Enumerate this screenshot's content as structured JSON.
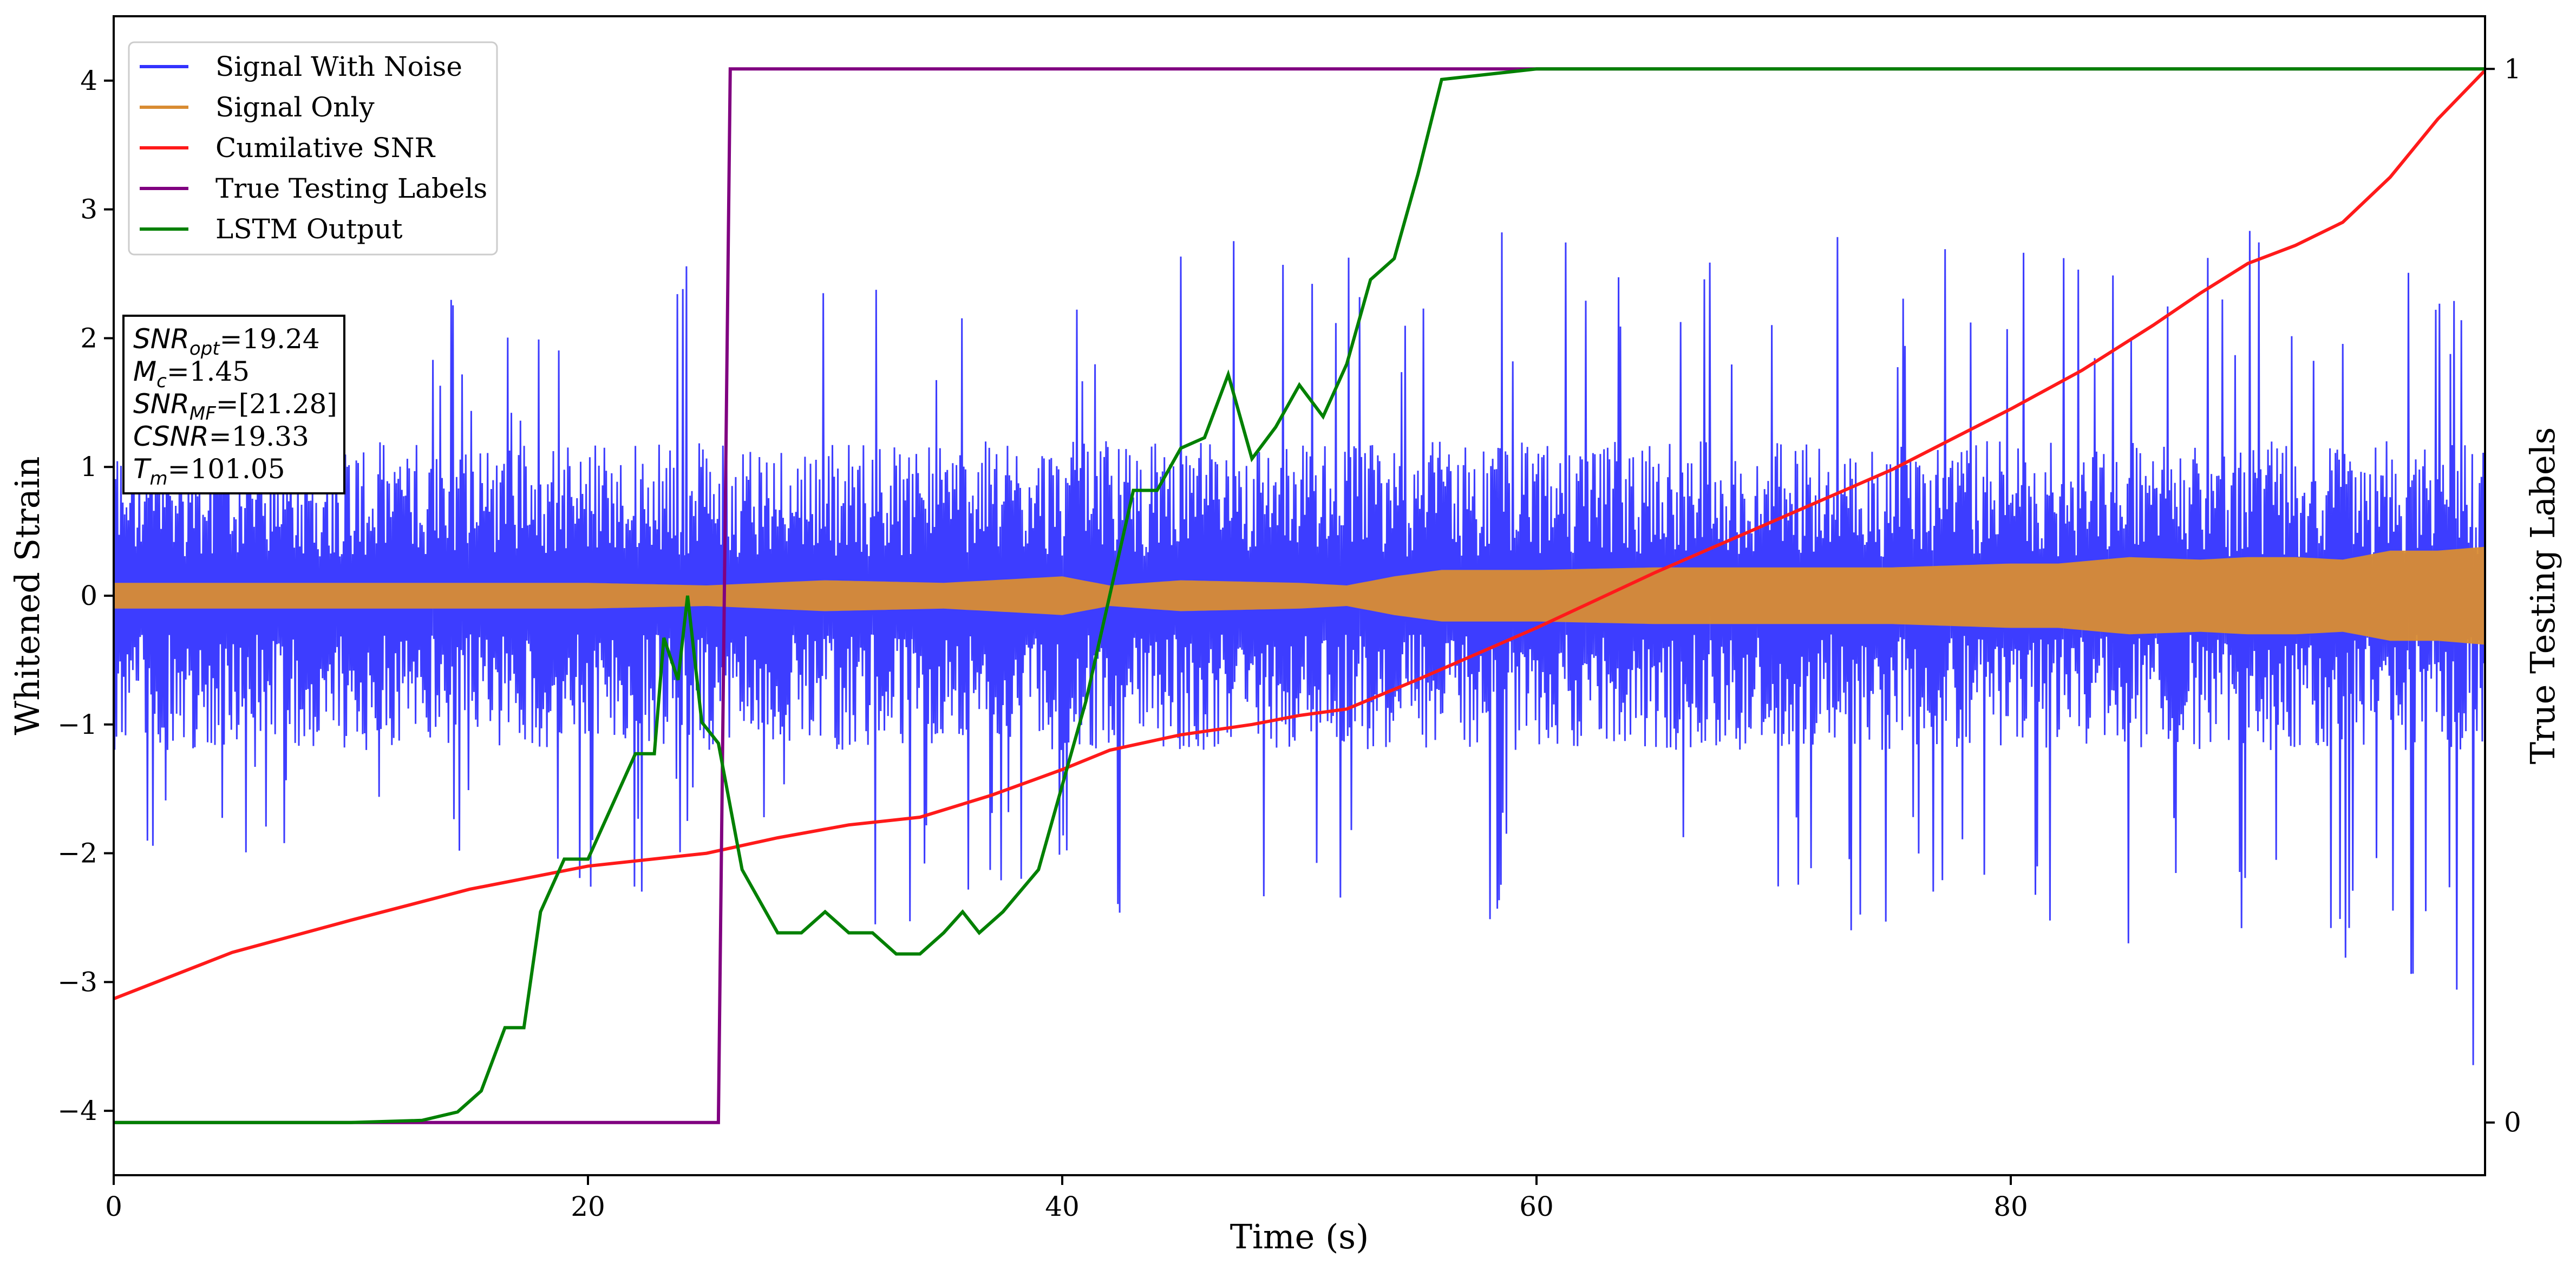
{
  "chart_data": {
    "type": "line",
    "xlabel": "Time (s)",
    "ylabel": "Whitened Strain",
    "y2label": "True Testing Labels",
    "xlim": [
      0,
      100
    ],
    "ylim": [
      -4.5,
      4.5
    ],
    "y2lim": [
      -0.05,
      1.05
    ],
    "xticks": [
      0,
      20,
      40,
      60,
      80
    ],
    "yticks": [
      -4,
      -3,
      -2,
      -1,
      0,
      1,
      2,
      3,
      4
    ],
    "y2ticks": [
      0,
      1
    ],
    "grid": false,
    "legend_position": "top-left",
    "colors": {
      "noise": "#3333ff",
      "signal": "#d98c33",
      "csnr": "#ff1a1a",
      "labels": "#800080",
      "lstm": "#008000"
    },
    "series": [
      {
        "name": "Signal With Noise",
        "axis": "left",
        "style": "band",
        "description_values": "noisy strain, core amplitude about ±0.6 with spikes",
        "x": [
          0,
          2,
          4,
          6,
          8,
          10,
          12,
          14,
          16,
          18,
          20,
          22,
          24,
          26,
          28,
          30,
          32,
          34,
          36,
          38,
          40,
          42,
          44,
          46,
          48,
          50,
          52,
          54,
          56,
          58,
          60,
          62,
          64,
          66,
          68,
          70,
          72,
          74,
          76,
          78,
          80,
          82,
          84,
          86,
          88,
          90,
          92,
          94,
          96,
          98,
          100
        ],
        "upper": [
          2.5,
          2.3,
          2.2,
          2.1,
          2.3,
          2.2,
          2.1,
          2.4,
          2.2,
          2.2,
          2.5,
          2.3,
          2.6,
          2.8,
          2.9,
          2.6,
          3.0,
          2.6,
          2.7,
          2.8,
          2.6,
          3.0,
          2.8,
          3.1,
          2.8,
          2.6,
          3.1,
          2.7,
          2.8,
          3.0,
          3.0,
          2.7,
          2.9,
          3.0,
          2.9,
          2.9,
          3.1,
          2.7,
          3.0,
          3.2,
          3.0,
          3.3,
          3.0,
          2.8,
          3.4,
          3.0,
          2.8,
          3.2,
          2.9,
          2.8,
          3.0
        ],
        "lower": [
          -2.6,
          -2.2,
          -2.0,
          -2.0,
          -2.3,
          -2.1,
          -2.2,
          -2.4,
          -2.3,
          -2.5,
          -2.3,
          -2.8,
          -2.2,
          -2.3,
          -2.4,
          -2.5,
          -2.7,
          -2.5,
          -2.4,
          -2.6,
          -2.5,
          -2.7,
          -2.6,
          -2.5,
          -2.5,
          -2.6,
          -2.6,
          -2.5,
          -2.6,
          -2.6,
          -2.6,
          -2.6,
          -2.8,
          -2.6,
          -2.7,
          -2.6,
          -2.8,
          -2.7,
          -2.6,
          -2.8,
          -2.7,
          -2.6,
          -2.9,
          -2.7,
          -2.8,
          -2.8,
          -3.0,
          -2.8,
          -3.0,
          -2.9,
          -4.0
        ]
      },
      {
        "name": "Signal Only",
        "axis": "left",
        "style": "envelope",
        "x": [
          0,
          5,
          10,
          15,
          20,
          25,
          30,
          35,
          40,
          42,
          45,
          50,
          52,
          54,
          56,
          60,
          65,
          70,
          75,
          80,
          82,
          85,
          88,
          90,
          92,
          94,
          96,
          98,
          100
        ],
        "values": [
          0.1,
          0.1,
          0.1,
          0.1,
          0.1,
          0.08,
          0.12,
          0.1,
          0.15,
          0.08,
          0.12,
          0.1,
          0.08,
          0.15,
          0.2,
          0.2,
          0.22,
          0.22,
          0.22,
          0.25,
          0.25,
          0.3,
          0.28,
          0.3,
          0.3,
          0.28,
          0.35,
          0.35,
          0.38
        ]
      },
      {
        "name": "Cumilative SNR",
        "axis": "left",
        "x": [
          0,
          5,
          10,
          15,
          20,
          25,
          28,
          31,
          34,
          37,
          40,
          42,
          45,
          48,
          50,
          52,
          55,
          60,
          65,
          70,
          75,
          80,
          83,
          86,
          88,
          90,
          92,
          94,
          96,
          98,
          100
        ],
        "values": [
          -3.13,
          -2.77,
          -2.52,
          -2.28,
          -2.1,
          -2.0,
          -1.88,
          -1.78,
          -1.72,
          -1.55,
          -1.35,
          -1.2,
          -1.08,
          -1.0,
          -0.93,
          -0.88,
          -0.65,
          -0.25,
          0.18,
          0.58,
          0.98,
          1.45,
          1.75,
          2.1,
          2.35,
          2.58,
          2.72,
          2.9,
          3.25,
          3.7,
          4.08
        ]
      },
      {
        "name": "True Testing Labels",
        "axis": "right",
        "x": [
          0,
          25.5,
          26.0,
          100
        ],
        "values": [
          0,
          0,
          1,
          1
        ]
      },
      {
        "name": "LSTM Output",
        "axis": "right",
        "x": [
          0,
          10,
          13,
          14.5,
          15.5,
          16.5,
          17.3,
          18,
          19,
          20,
          21,
          22,
          22.8,
          23.2,
          23.8,
          24.2,
          24.8,
          25.5,
          26.5,
          27,
          28,
          29,
          30,
          31,
          32,
          33,
          34,
          35,
          35.8,
          36.5,
          37.5,
          39,
          40,
          41,
          42,
          43,
          44,
          45,
          46,
          47,
          48,
          49,
          50,
          51,
          52,
          53,
          54,
          55,
          56,
          58,
          60,
          62,
          65,
          70,
          80,
          90,
          100
        ],
        "values": [
          0,
          0,
          0.002,
          0.01,
          0.03,
          0.09,
          0.09,
          0.2,
          0.25,
          0.25,
          0.3,
          0.35,
          0.35,
          0.46,
          0.42,
          0.5,
          0.38,
          0.36,
          0.24,
          0.22,
          0.18,
          0.18,
          0.2,
          0.18,
          0.18,
          0.16,
          0.16,
          0.18,
          0.2,
          0.18,
          0.2,
          0.24,
          0.32,
          0.4,
          0.5,
          0.6,
          0.6,
          0.64,
          0.65,
          0.71,
          0.63,
          0.66,
          0.7,
          0.67,
          0.72,
          0.8,
          0.82,
          0.9,
          0.99,
          0.995,
          1,
          1,
          1,
          1,
          1,
          1,
          1
        ]
      }
    ],
    "annotation_box": {
      "lines": [
        {
          "sym": "SNR",
          "sub": "opt",
          "val": "=19.24"
        },
        {
          "sym": "M",
          "sub": "c",
          "val": "=1.45"
        },
        {
          "sym": "SNR",
          "sub": "MF",
          "val": "=[21.28]"
        },
        {
          "sym": "CSNR",
          "sub": "",
          "val": "=19.33"
        },
        {
          "sym": "T",
          "sub": "m",
          "val": "=101.05"
        }
      ]
    }
  }
}
